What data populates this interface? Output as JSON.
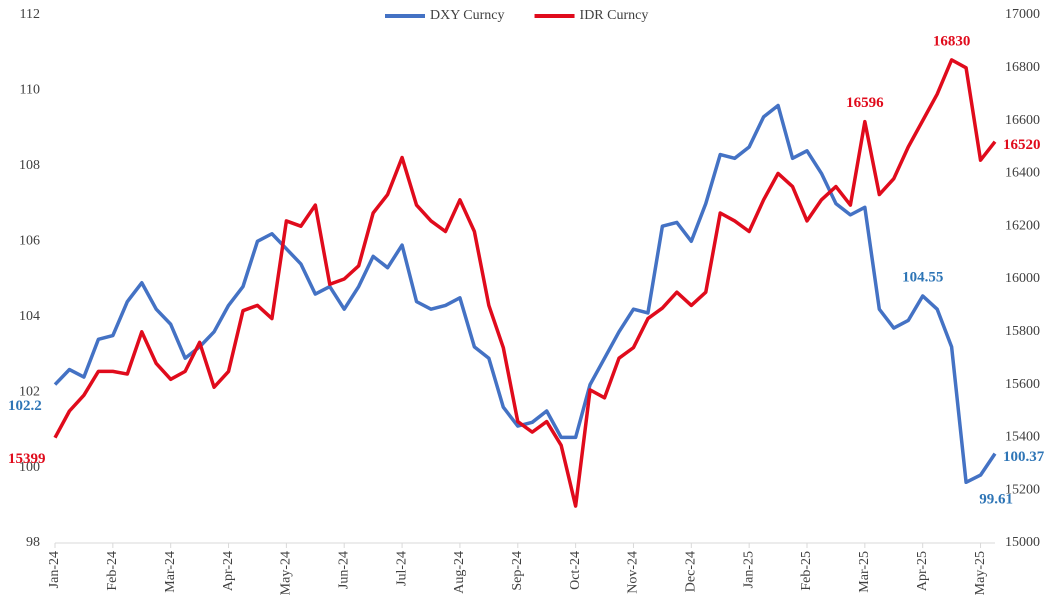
{
  "chart_data": {
    "type": "line",
    "categories": [
      "Jan-24",
      null,
      null,
      null,
      "Feb-24",
      null,
      null,
      null,
      "Mar-24",
      null,
      null,
      null,
      "Apr-24",
      null,
      null,
      null,
      "May-24",
      null,
      null,
      null,
      "Jun-24",
      null,
      null,
      null,
      "Jul-24",
      null,
      null,
      null,
      "Aug-24",
      null,
      null,
      null,
      "Sep-24",
      null,
      null,
      null,
      "Oct-24",
      null,
      null,
      null,
      "Nov-24",
      null,
      null,
      null,
      "Dec-24",
      null,
      null,
      null,
      "Jan-25",
      null,
      null,
      null,
      "Feb-25",
      null,
      null,
      null,
      "Mar-25",
      null,
      null,
      null,
      "Apr-25",
      null,
      null,
      null,
      "May-25",
      null
    ],
    "series": [
      {
        "name": "DXY Curncy",
        "color": "#4472c4",
        "label_color": "#2e75b6",
        "values": [
          102.2,
          102.6,
          102.4,
          103.4,
          103.5,
          104.4,
          104.9,
          104.2,
          103.8,
          102.9,
          103.2,
          103.6,
          104.3,
          104.8,
          106.0,
          106.2,
          105.8,
          105.4,
          104.6,
          104.8,
          104.2,
          104.8,
          105.6,
          105.3,
          105.9,
          104.4,
          104.2,
          104.3,
          104.5,
          103.2,
          102.9,
          101.6,
          101.1,
          101.2,
          101.5,
          100.8,
          100.8,
          102.2,
          102.9,
          103.6,
          104.2,
          104.1,
          106.4,
          106.5,
          106.0,
          107.0,
          108.3,
          108.2,
          108.5,
          109.3,
          109.6,
          108.2,
          108.4,
          107.8,
          107.0,
          106.7,
          106.9,
          104.2,
          103.7,
          103.9,
          104.55,
          104.2,
          103.2,
          99.61,
          99.8,
          100.37
        ],
        "value_labels": [
          "102.2",
          null,
          null,
          null,
          null,
          null,
          null,
          null,
          null,
          null,
          null,
          null,
          null,
          null,
          null,
          null,
          null,
          null,
          null,
          null,
          null,
          null,
          null,
          null,
          null,
          null,
          null,
          null,
          null,
          null,
          null,
          null,
          null,
          null,
          null,
          null,
          null,
          null,
          null,
          null,
          null,
          null,
          null,
          null,
          null,
          null,
          null,
          null,
          null,
          null,
          null,
          null,
          null,
          null,
          null,
          null,
          null,
          null,
          null,
          null,
          "104.55",
          null,
          null,
          "99.61",
          null,
          "100.37"
        ]
      },
      {
        "name": "IDR Curncy",
        "color": "#e00b1c",
        "label_color": "#e00b1c",
        "axis": "y2",
        "values": [
          15399,
          15500,
          15560,
          15650,
          15650,
          15640,
          15800,
          15680,
          15620,
          15650,
          15760,
          15590,
          15650,
          15880,
          15900,
          15850,
          16220,
          16200,
          16280,
          15980,
          16000,
          16050,
          16250,
          16320,
          16460,
          16280,
          16220,
          16180,
          16300,
          16180,
          15900,
          15740,
          15460,
          15420,
          15460,
          15370,
          15140,
          15580,
          15550,
          15700,
          15740,
          15850,
          15890,
          15950,
          15900,
          15950,
          16250,
          16220,
          16180,
          16300,
          16400,
          16350,
          16220,
          16300,
          16350,
          16280,
          16596,
          16320,
          16380,
          16500,
          16600,
          16700,
          16830,
          16800,
          16450,
          16520
        ],
        "value_labels": [
          "15399",
          null,
          null,
          null,
          null,
          null,
          null,
          null,
          null,
          null,
          null,
          null,
          null,
          null,
          null,
          null,
          null,
          null,
          null,
          null,
          null,
          null,
          null,
          null,
          null,
          null,
          null,
          null,
          null,
          null,
          null,
          null,
          null,
          null,
          null,
          null,
          null,
          null,
          null,
          null,
          null,
          null,
          null,
          null,
          null,
          null,
          null,
          null,
          null,
          null,
          null,
          null,
          null,
          null,
          null,
          null,
          "16596",
          null,
          null,
          null,
          null,
          null,
          "16830",
          null,
          null,
          "16520"
        ]
      }
    ],
    "ylim": [
      98,
      112
    ],
    "yticks": [
      98,
      100,
      102,
      104,
      106,
      108,
      110,
      112
    ],
    "y2lim": [
      15000,
      17000
    ],
    "y2ticks": [
      15000,
      15200,
      15400,
      15600,
      15800,
      16000,
      16200,
      16400,
      16600,
      16800,
      17000
    ],
    "legend": "top"
  }
}
